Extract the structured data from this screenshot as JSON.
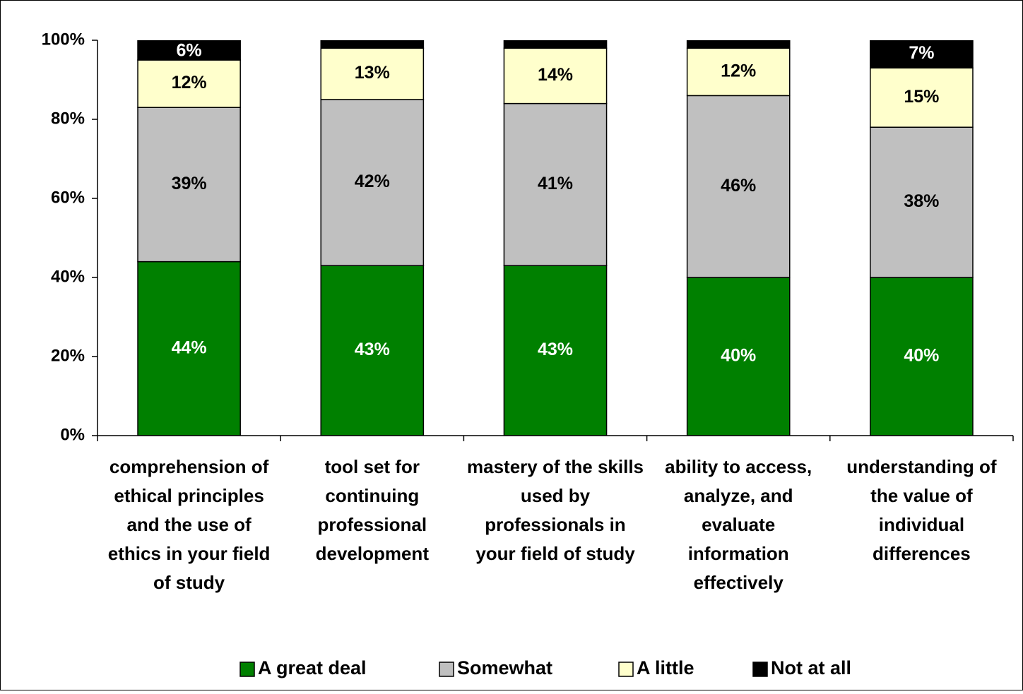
{
  "chart_data": {
    "type": "stacked_bar",
    "categories": [
      "comprehension of ethical principles and the use of ethics in your field of study",
      "tool set for continuing professional development",
      "mastery of the skills used by professionals in your field of study",
      "ability to access, analyze, and evaluate information effectively",
      "understanding of the value of individual differences"
    ],
    "series": [
      {
        "name": "A great deal",
        "color": "#008000",
        "values": [
          44,
          43,
          43,
          40,
          40
        ],
        "value_labels": [
          "44%",
          "43%",
          "43%",
          "40%",
          "40%"
        ]
      },
      {
        "name": "Somewhat",
        "color": "#c0c0c0",
        "values": [
          39,
          42,
          41,
          46,
          38
        ],
        "value_labels": [
          "39%",
          "42%",
          "41%",
          "46%",
          "38%"
        ]
      },
      {
        "name": "A little",
        "color": "#ffffcc",
        "values": [
          12,
          13,
          14,
          12,
          15
        ],
        "value_labels": [
          "12%",
          "13%",
          "14%",
          "12%",
          "15%"
        ]
      },
      {
        "name": "Not at all",
        "color": "#000000",
        "values": [
          6,
          2,
          2,
          3,
          7
        ],
        "value_labels": [
          "6%",
          null,
          null,
          null,
          "7%"
        ]
      }
    ],
    "ylim": [
      0,
      100
    ],
    "yticks": [
      {
        "value": 0,
        "label": "0%"
      },
      {
        "value": 20,
        "label": "20%"
      },
      {
        "value": 40,
        "label": "40%"
      },
      {
        "value": 60,
        "label": "60%"
      },
      {
        "value": 80,
        "label": "80%"
      },
      {
        "value": 100,
        "label": "100%"
      }
    ],
    "legend": "bottom"
  }
}
